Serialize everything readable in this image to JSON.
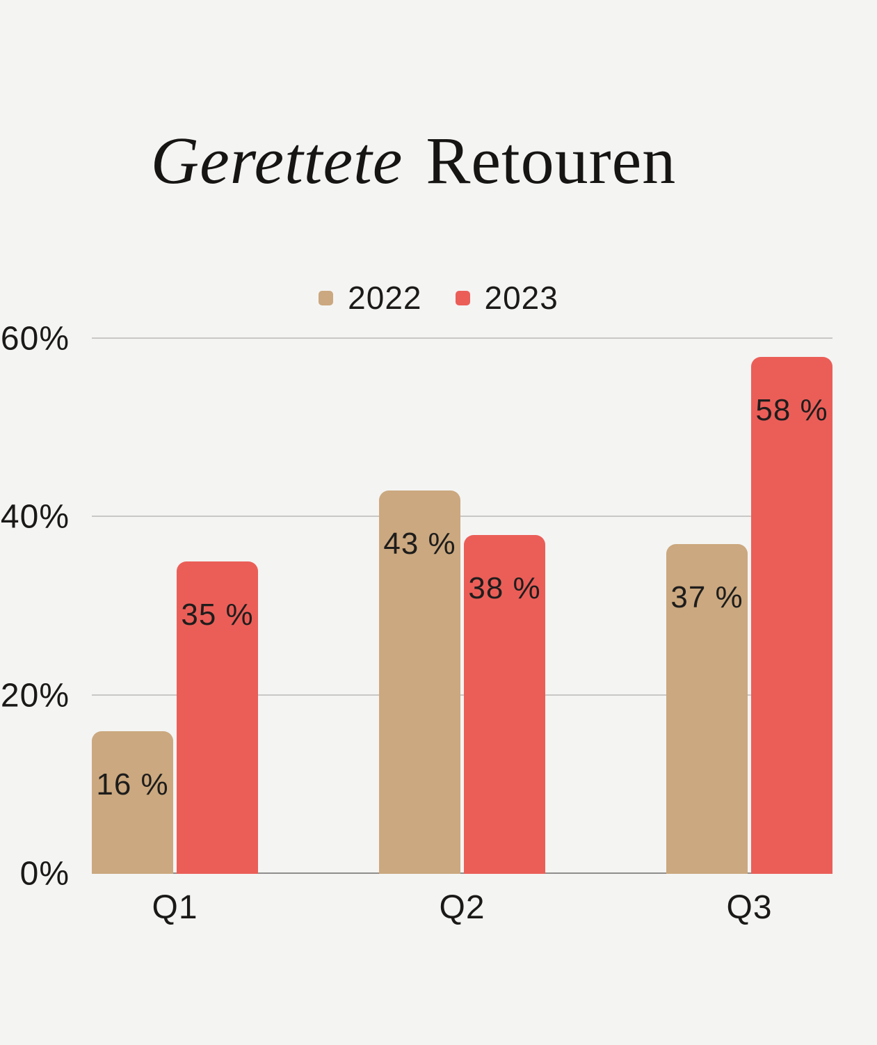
{
  "page": {
    "background": "#F4F4F3"
  },
  "title": {
    "italic_part": "Gerettete",
    "regular_part": "Retouren"
  },
  "chart_data": {
    "type": "bar",
    "title": "Gerettete Retouren",
    "categories": [
      "Q1",
      "Q2",
      "Q3"
    ],
    "series": [
      {
        "name": "2022",
        "color": "#CBA87F",
        "values": [
          16,
          43,
          37
        ]
      },
      {
        "name": "2023",
        "color": "#EB5E58",
        "values": [
          35,
          38,
          58
        ]
      }
    ],
    "value_suffix": " %",
    "value_labels": [
      [
        "16 %",
        "43 %",
        "37 %"
      ],
      [
        "35 %",
        "38 %",
        "58 %"
      ]
    ],
    "y_ticks": [
      {
        "value": 0,
        "label": "0%"
      },
      {
        "value": 20,
        "label": "20%"
      },
      {
        "value": 40,
        "label": "40%"
      },
      {
        "value": 60,
        "label": "60%"
      }
    ],
    "ylim": [
      0,
      60
    ],
    "grid": true,
    "legend_position": "top-center",
    "colors": {
      "background": "#F4F4F3",
      "gridline": "#C8C7C6",
      "baseline": "#8E8D8B",
      "text": "#1A1918"
    }
  }
}
